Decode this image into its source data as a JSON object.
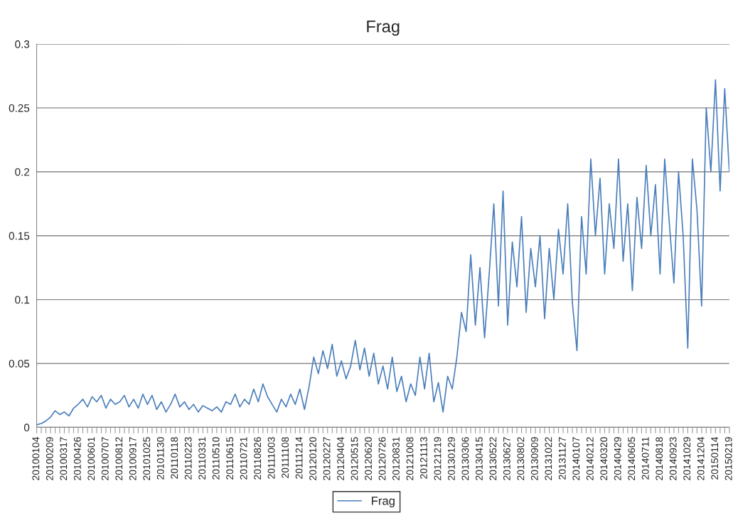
{
  "chart_data": {
    "type": "line",
    "title": "Frag",
    "categories": [
      "20100104",
      null,
      null,
      "20100209",
      null,
      null,
      "20100317",
      null,
      null,
      "20100426",
      null,
      null,
      "20100601",
      null,
      null,
      "20100707",
      null,
      null,
      "20100812",
      null,
      null,
      "20100917",
      null,
      null,
      "20101025",
      null,
      null,
      "20101130",
      null,
      null,
      "20110118",
      null,
      null,
      "20110223",
      null,
      null,
      "20110331",
      null,
      null,
      "20110510",
      null,
      null,
      "20110615",
      null,
      null,
      "20110721",
      null,
      null,
      "20110826",
      null,
      null,
      "20111003",
      null,
      null,
      "20111108",
      null,
      null,
      "20111214",
      null,
      null,
      "20120120",
      null,
      null,
      "20120227",
      null,
      null,
      "20120404",
      null,
      null,
      "20120515",
      null,
      null,
      "20120620",
      null,
      null,
      "20120726",
      null,
      null,
      "20120831",
      null,
      null,
      "20121008",
      null,
      null,
      "20121113",
      null,
      null,
      "20121219",
      null,
      null,
      "20130129",
      null,
      null,
      "20130306",
      null,
      null,
      "20130415",
      null,
      null,
      "20130522",
      null,
      null,
      "20130627",
      null,
      null,
      "20130802",
      null,
      null,
      "20130909",
      null,
      null,
      "20131022",
      null,
      null,
      "20131127",
      null,
      null,
      "20140107",
      null,
      null,
      "20140212",
      null,
      null,
      "20140320",
      null,
      null,
      "20140429",
      null,
      null,
      "20140605",
      null,
      null,
      "20140711",
      null,
      null,
      "20140818",
      null,
      null,
      "20140923",
      null,
      null,
      "20141029",
      null,
      null,
      "20141204",
      null,
      null,
      "20150114",
      null,
      null,
      "20150219"
    ],
    "series": [
      {
        "name": "Frag",
        "color": "#4a7ebb",
        "values": [
          0.002,
          0.003,
          0.005,
          0.008,
          0.013,
          0.01,
          0.012,
          0.009,
          0.015,
          0.018,
          0.022,
          0.016,
          0.024,
          0.02,
          0.025,
          0.015,
          0.022,
          0.018,
          0.02,
          0.025,
          0.016,
          0.022,
          0.015,
          0.026,
          0.018,
          0.025,
          0.014,
          0.02,
          0.012,
          0.018,
          0.026,
          0.016,
          0.02,
          0.014,
          0.018,
          0.012,
          0.017,
          0.015,
          0.013,
          0.016,
          0.012,
          0.02,
          0.018,
          0.026,
          0.016,
          0.022,
          0.018,
          0.03,
          0.02,
          0.034,
          0.024,
          0.018,
          0.012,
          0.022,
          0.016,
          0.026,
          0.018,
          0.03,
          0.014,
          0.032,
          0.055,
          0.042,
          0.06,
          0.046,
          0.065,
          0.04,
          0.052,
          0.038,
          0.048,
          0.068,
          0.045,
          0.062,
          0.04,
          0.058,
          0.034,
          0.048,
          0.03,
          0.055,
          0.028,
          0.04,
          0.02,
          0.034,
          0.025,
          0.055,
          0.03,
          0.058,
          0.02,
          0.035,
          0.012,
          0.04,
          0.03,
          0.055,
          0.09,
          0.075,
          0.135,
          0.08,
          0.125,
          0.07,
          0.12,
          0.175,
          0.095,
          0.185,
          0.08,
          0.145,
          0.11,
          0.165,
          0.09,
          0.14,
          0.11,
          0.15,
          0.085,
          0.14,
          0.1,
          0.155,
          0.12,
          0.175,
          0.098,
          0.06,
          0.165,
          0.12,
          0.21,
          0.15,
          0.195,
          0.12,
          0.175,
          0.14,
          0.21,
          0.13,
          0.175,
          0.107,
          0.18,
          0.14,
          0.205,
          0.15,
          0.19,
          0.12,
          0.21,
          0.16,
          0.113,
          0.2,
          0.15,
          0.062,
          0.21,
          0.17,
          0.095,
          0.25,
          0.2,
          0.272,
          0.185,
          0.265,
          0.2
        ]
      }
    ],
    "ylim": [
      0,
      0.3
    ],
    "yticks": [
      0,
      0.05,
      0.1,
      0.15,
      0.2,
      0.25,
      0.3
    ],
    "grid": "y",
    "legend": "bottom"
  }
}
